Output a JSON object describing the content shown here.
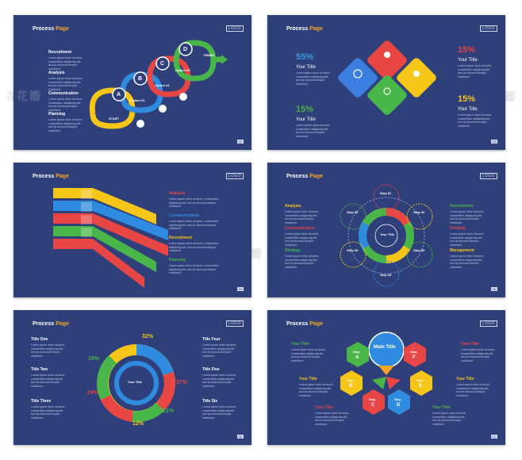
{
  "common": {
    "title_main": "Process",
    "title_accent": "Page",
    "logo": "LOGO",
    "body": "Lorem ipsum dolor sit amet, consectetur adipiscing elit, sed do eiusmod tempor incididunt",
    "your_title": "Your Title",
    "watermark": "花瓣"
  },
  "slide1": {
    "items": [
      "Recruitment",
      "Analysis",
      "Communication",
      "Planning"
    ],
    "letters": [
      "A",
      "B",
      "C",
      "D"
    ],
    "options": [
      "Option 01",
      "Option 02",
      "Option 03",
      "Option 04"
    ],
    "start": "START",
    "finish": "FINISH",
    "page": "02"
  },
  "slide2": {
    "pct_a": "55%",
    "pct_b": "15%",
    "pct_c": "15%",
    "pct_d": "15%",
    "page": "03"
  },
  "slide3": {
    "items": [
      "Analysis",
      "Communication",
      "Recruitment",
      "Planning"
    ],
    "page": "04"
  },
  "slide4": {
    "left": [
      "Analysis",
      "Communication",
      "Strategy"
    ],
    "right": [
      "Recruitment",
      "Funding",
      "Management"
    ],
    "steps": [
      "Step 01",
      "Step 02",
      "Step 03",
      "Step 04",
      "Step 05",
      "Step 06"
    ],
    "center": "Your Title",
    "page": "05"
  },
  "slide5": {
    "left": [
      "Title One",
      "Title Two",
      "Title Three"
    ],
    "right": [
      "Title Four",
      "Title Five",
      "Title Six"
    ],
    "pcts": [
      "32%",
      "27%",
      "21%",
      "12%",
      "24%",
      "19%"
    ],
    "steps": [
      "Step 01",
      "Step 02",
      "Step 03",
      "Step 04",
      "Step 05",
      "Step 06"
    ],
    "center": "Your Title",
    "page": "06"
  },
  "slide6": {
    "main": "Main Title",
    "steps": [
      "A",
      "B",
      "C",
      "D",
      "E",
      "F"
    ],
    "step_word": "Step",
    "page": "07"
  }
}
